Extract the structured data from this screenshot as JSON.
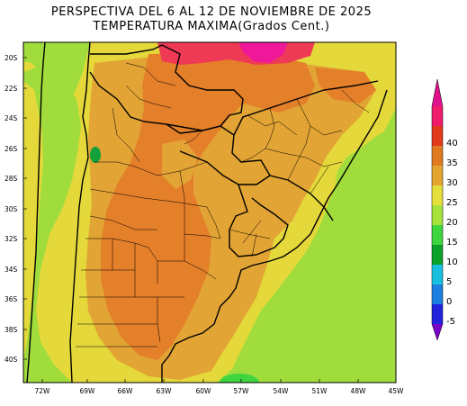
{
  "title_line1": "PERSPECTIVA DEL 6 AL 12 DE NOVIEMBRE DE 2025",
  "title_line2": "TEMPERATURA MAXIMA(Grados Cent.)",
  "lat_ticks": [
    "20S",
    "22S",
    "24S",
    "26S",
    "28S",
    "30S",
    "32S",
    "34S",
    "36S",
    "38S",
    "40S"
  ],
  "lon_ticks": [
    "72W",
    "69W",
    "66W",
    "63W",
    "60W",
    "57W",
    "54W",
    "51W",
    "48W",
    "45W"
  ],
  "colorbar": {
    "labels": [
      "-5",
      "0",
      "5",
      "10",
      "15",
      "20",
      "25",
      "30",
      "35",
      "40"
    ],
    "colors": [
      "#7a00c8",
      "#2222dd",
      "#1b7fe0",
      "#18c0e0",
      "#0aa02a",
      "#3ed53e",
      "#a6e33c",
      "#e6de3a",
      "#e2a530",
      "#e07a20",
      "#e23a1a",
      "#ee1c6a",
      "#e0128c"
    ]
  },
  "map": {
    "field_colors": {
      "green": "#a0dd3c",
      "yellow": "#e4d83a",
      "gold": "#e2a434",
      "orange": "#e47f2a",
      "red": "#ef3a55",
      "magenta": "#f0189a",
      "dark_green": "#14a03a"
    }
  }
}
